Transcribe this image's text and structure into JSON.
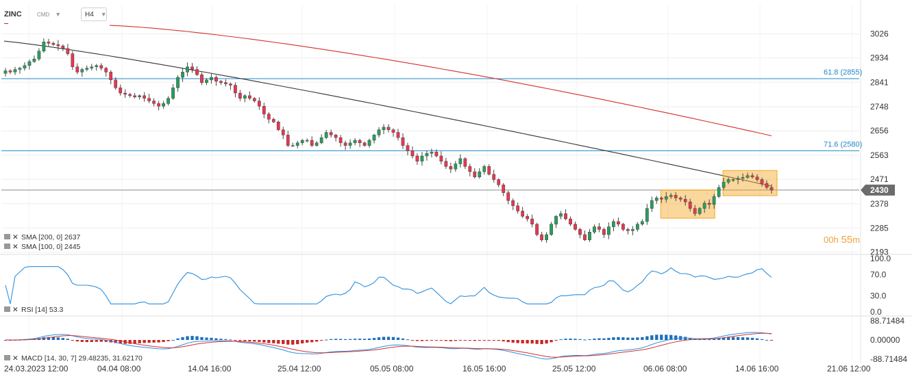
{
  "header": {
    "symbol": "ZINC",
    "asset_class": "CMD",
    "timeframe": "H4"
  },
  "countdown": {
    "hours": "00h",
    "minutes": "55",
    "unit": "m"
  },
  "indicators": {
    "sma200": {
      "label": "SMA [200, 0] 2637",
      "color": "#d32f2f"
    },
    "sma100": {
      "label": "SMA [100, 0] 2445",
      "color": "#333333"
    },
    "rsi": {
      "label": "RSI [14] 53.3",
      "color": "#2b8fde"
    },
    "macd": {
      "label": "MACD [14, 30, 7] 29.48235, 31.62170"
    }
  },
  "colors": {
    "bull": "#2a9d5c",
    "bear": "#e53850",
    "fib_line": "#1e88c8",
    "current_price_line": "#888888",
    "highlight_fill": "#f5a623",
    "macd_line": "#2b8fde",
    "signal_line": "#d32f2f",
    "hist_pos": "#1e6fb8",
    "hist_neg": "#c62828"
  },
  "chart_data": {
    "type": "candlestick",
    "x_ticks": [
      "24.03.2023 12:00",
      "04.04 08:00",
      "14.04 16:00",
      "25.04 12:00",
      "05.05 08:00",
      "16.05 16:00",
      "25.05 12:00",
      "06.06 08:00",
      "14.06 16:00",
      "21.06 12:00"
    ],
    "price_axis": {
      "ticks": [
        "3026",
        "2934",
        "2841",
        "2748",
        "2656",
        "2563",
        "2471",
        "2378",
        "2285",
        "2193"
      ],
      "range": [
        2187,
        3061
      ]
    },
    "current_price": {
      "value": 2430,
      "label": "2430"
    },
    "fib_levels": [
      {
        "label": "61.8 (2855)",
        "value": 2855
      },
      {
        "label": "71.6 (2580)",
        "value": 2580
      }
    ],
    "closes": [
      2885,
      2880,
      2890,
      2895,
      2905,
      2920,
      2930,
      2960,
      2995,
      2990,
      2985,
      2980,
      2970,
      2950,
      2900,
      2880,
      2890,
      2895,
      2900,
      2905,
      2895,
      2880,
      2850,
      2820,
      2800,
      2795,
      2790,
      2785,
      2790,
      2780,
      2770,
      2760,
      2750,
      2760,
      2780,
      2820,
      2860,
      2880,
      2900,
      2890,
      2870,
      2840,
      2850,
      2860,
      2845,
      2840,
      2835,
      2830,
      2800,
      2780,
      2790,
      2780,
      2770,
      2750,
      2720,
      2700,
      2690,
      2660,
      2640,
      2600,
      2600,
      2610,
      2620,
      2620,
      2600,
      2610,
      2630,
      2650,
      2640,
      2630,
      2610,
      2600,
      2610,
      2620,
      2610,
      2600,
      2620,
      2640,
      2660,
      2670,
      2660,
      2650,
      2630,
      2600,
      2580,
      2560,
      2540,
      2560,
      2570,
      2575,
      2560,
      2540,
      2520,
      2510,
      2530,
      2550,
      2520,
      2500,
      2480,
      2500,
      2520,
      2490,
      2470,
      2450,
      2420,
      2390,
      2370,
      2350,
      2330,
      2320,
      2300,
      2260,
      2240,
      2260,
      2300,
      2330,
      2340,
      2320,
      2300,
      2280,
      2260,
      2240,
      2270,
      2290,
      2280,
      2260,
      2290,
      2310,
      2300,
      2280,
      2275,
      2280,
      2300,
      2310,
      2360,
      2390,
      2400,
      2395,
      2405,
      2410,
      2400,
      2395,
      2385,
      2360,
      2340,
      2360,
      2380,
      2375,
      2405,
      2440,
      2460,
      2470,
      2470,
      2475,
      2478,
      2485,
      2480,
      2470,
      2455,
      2440,
      2430
    ]
  }
}
